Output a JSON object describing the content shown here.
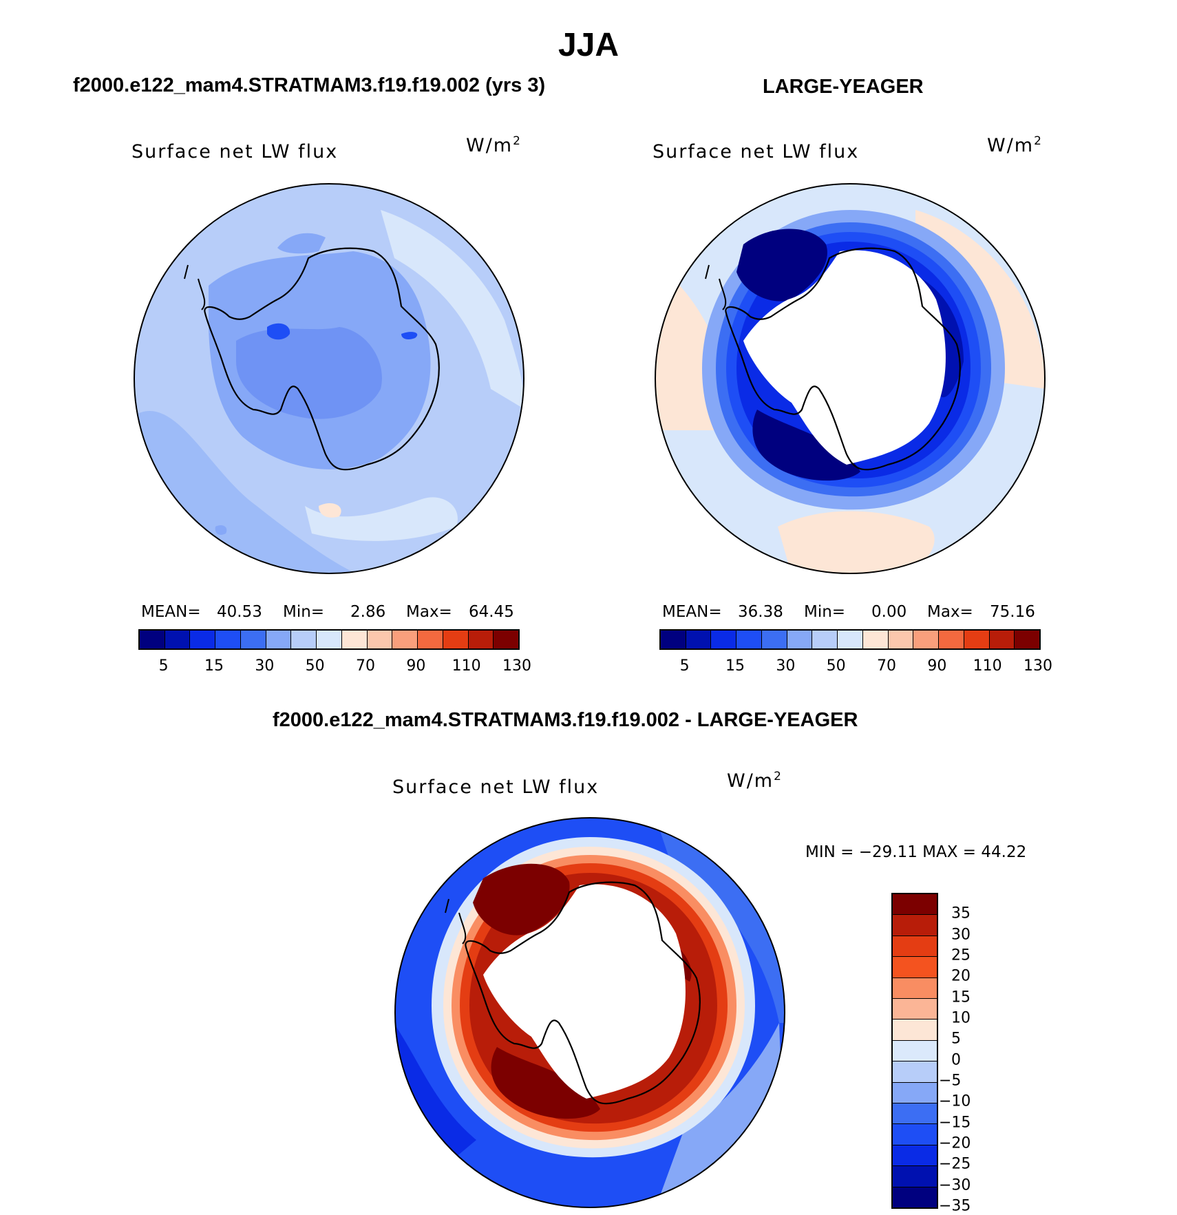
{
  "figure": {
    "title": "JJA"
  },
  "colors": {
    "top_scale": [
      "#00007f",
      "#0011b0",
      "#0a2be6",
      "#1e4ef5",
      "#3c6ef3",
      "#86a8f7",
      "#b7cdf9",
      "#d8e7fb",
      "#fde6d6",
      "#fbc7ad",
      "#f99f7c",
      "#f4693f",
      "#e43d13",
      "#b81d09",
      "#7c0000"
    ],
    "diff_scale_top_to_bottom": [
      "#7c0000",
      "#b81d09",
      "#e43d13",
      "#f4531f",
      "#f98d62",
      "#fbb596",
      "#fde6d6",
      "#dbe9fb",
      "#b7cdf9",
      "#86a8f7",
      "#3c6ef3",
      "#1e4ef5",
      "#0a2be6",
      "#0011b0",
      "#00007f"
    ]
  },
  "panels": {
    "model": {
      "header": "f2000.e122_mam4.STRATMAM3.f19.f19.002 (yrs 3)",
      "variable": "Surface net LW flux",
      "unit_base": "W/m",
      "unit_exp": "2",
      "mean_label": "MEAN=",
      "mean_value": "40.53",
      "min_label": "Min=",
      "min_value": "2.86",
      "max_label": "Max=",
      "max_value": "64.45"
    },
    "obs": {
      "header": "LARGE-YEAGER",
      "variable": "Surface net LW flux",
      "unit_base": "W/m",
      "unit_exp": "2",
      "mean_label": "MEAN=",
      "mean_value": "36.38",
      "min_label": "Min=",
      "min_value": "0.00",
      "max_label": "Max=",
      "max_value": "75.16"
    },
    "diff": {
      "header": "f2000.e122_mam4.STRATMAM3.f19.f19.002 - LARGE-YEAGER",
      "variable": "Surface net LW flux",
      "unit_base": "W/m",
      "unit_exp": "2",
      "minmax_text": "MIN = −29.11 MAX =  44.22"
    }
  },
  "colorbar_top": {
    "tick_labels": [
      "5",
      "15",
      "30",
      "50",
      "70",
      "90",
      "110",
      "130"
    ]
  },
  "colorbar_diff": {
    "tick_labels": [
      "35",
      "30",
      "25",
      "20",
      "15",
      "10",
      "5",
      "0",
      "−5",
      "−10",
      "−15",
      "−20",
      "−25",
      "−30",
      "−35"
    ]
  }
}
